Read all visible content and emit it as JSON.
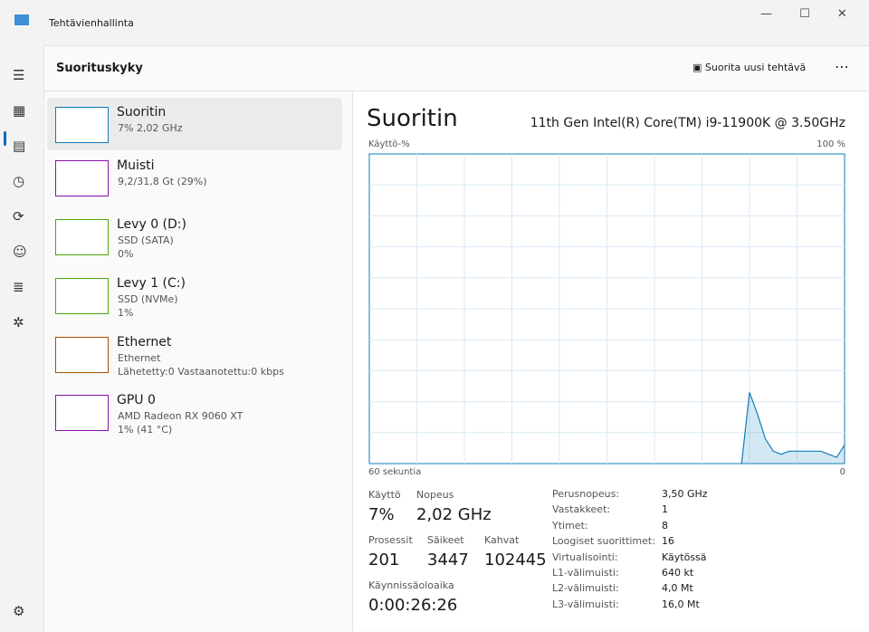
{
  "window": {
    "title": "Tehtävienhallinta"
  },
  "header": {
    "title": "Suorituskyky",
    "action": "Suorita uusi tehtävä"
  },
  "devices": [
    {
      "name": "Suoritin",
      "lines": [
        "7% 2,02 GHz"
      ]
    },
    {
      "name": "Muisti",
      "lines": [
        "9,2/31,8 Gt (29%)"
      ]
    },
    {
      "name": "Levy 0 (D:)",
      "lines": [
        "SSD (SATA)",
        "0%"
      ]
    },
    {
      "name": "Levy 1 (C:)",
      "lines": [
        "SSD (NVMe)",
        "1%"
      ]
    },
    {
      "name": "Ethernet",
      "lines": [
        "Ethernet",
        "Lähetetty:0 Vastaanotettu:0 kbps"
      ]
    },
    {
      "name": "GPU 0",
      "lines": [
        "AMD Radeon RX 9060 XT",
        "1% (41 °C)"
      ]
    }
  ],
  "panel": {
    "title": "Suoritin",
    "model": "11th Gen Intel(R) Core(TM) i9-11900K @ 3.50GHz"
  },
  "chart_data": {
    "type": "line",
    "ylabel": "Käyttö-%",
    "ymax_label": "100 %",
    "x_left_label": "60 sekuntia",
    "x_right_label": "0",
    "ylim": [
      0,
      100
    ],
    "color": "#117dbb",
    "values": [
      null,
      null,
      null,
      null,
      null,
      null,
      null,
      null,
      null,
      null,
      null,
      null,
      null,
      null,
      null,
      null,
      null,
      null,
      null,
      null,
      null,
      null,
      null,
      null,
      null,
      null,
      null,
      null,
      null,
      null,
      null,
      null,
      null,
      null,
      null,
      null,
      null,
      null,
      null,
      null,
      null,
      null,
      null,
      null,
      null,
      null,
      null,
      0,
      23,
      16,
      8,
      4,
      3,
      4,
      4,
      4,
      4,
      4,
      3,
      2,
      6
    ]
  },
  "stats": [
    {
      "label": "Käyttö",
      "value": "7%"
    },
    {
      "label": "Nopeus",
      "value": "2,02 GHz"
    },
    {
      "label": "Prosessit",
      "value": "201"
    },
    {
      "label": "Säikeet",
      "value": "3447"
    },
    {
      "label": "Kahvat",
      "value": "102445"
    },
    {
      "label": "Käynnissäoloaika",
      "value": "0:00:26:26"
    }
  ],
  "specs": [
    [
      "Perusnopeus:",
      "3,50 GHz"
    ],
    [
      "Vastakkeet:",
      "1"
    ],
    [
      "Ytimet:",
      "8"
    ],
    [
      "Loogiset suorittimet:",
      "16"
    ],
    [
      "Virtualisointi:",
      "Käytössä"
    ],
    [
      "L1-välimuisti:",
      "640 kt"
    ],
    [
      "L2-välimuisti:",
      "4,0 Mt"
    ],
    [
      "L3-välimuisti:",
      "16,0 Mt"
    ]
  ]
}
